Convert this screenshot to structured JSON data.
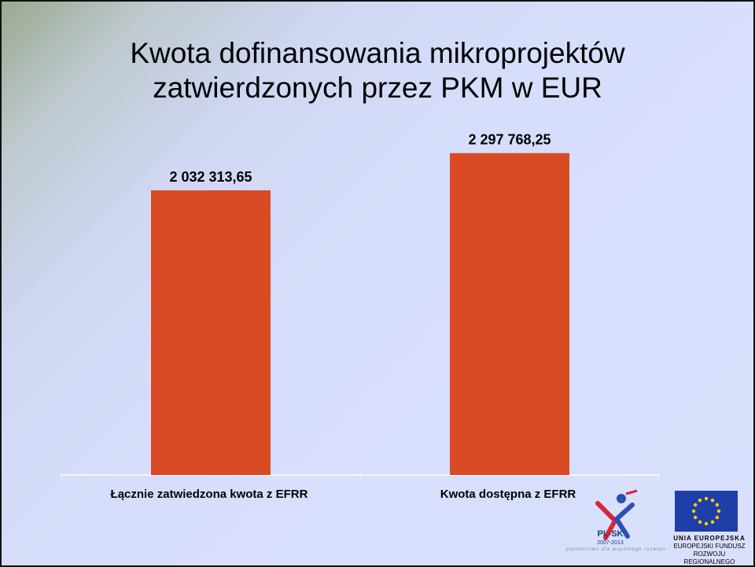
{
  "slide": {
    "title_line1": "Kwota dofinansowania mikroprojektów",
    "title_line2": "zatwierdzonych przez PKM w EUR"
  },
  "chart_data": {
    "type": "bar",
    "categories": [
      "Łącznie zatwiedzona kwota z EFRR",
      "Kwota dostępna z EFRR"
    ],
    "values": [
      2032313.65,
      2297768.25
    ],
    "data_labels": [
      "2 032 313,65",
      "2 297 768,25"
    ],
    "ylim": [
      0,
      2650000
    ],
    "grid": false,
    "bar_color": "#d94b24"
  },
  "logos": {
    "plsk_name": "PL-SK",
    "plsk_years": "2007-2013",
    "motto": "partnerstwo dla wspólnego rozwoju",
    "eu_line1": "UNIA EUROPEJSKA",
    "eu_line2": "EUROPEJSKI FUNDUSZ",
    "eu_line3": "ROZWOJU REGIONALNEGO"
  }
}
